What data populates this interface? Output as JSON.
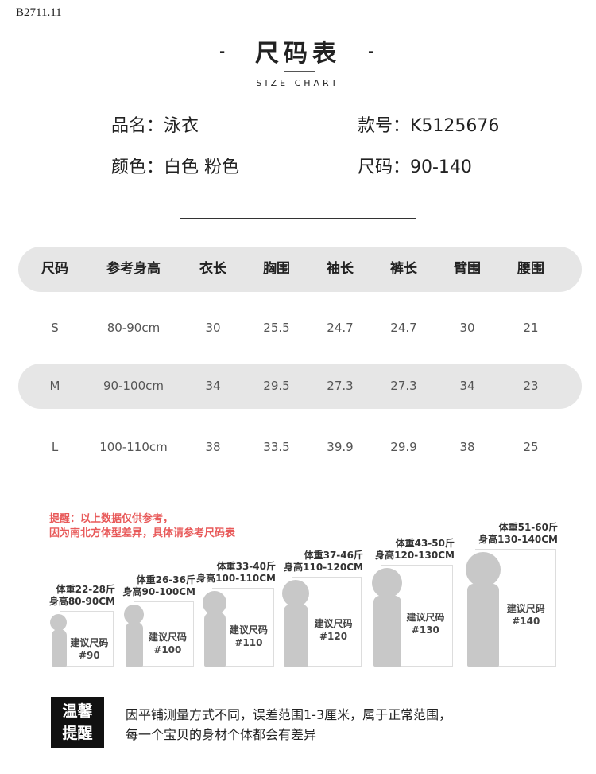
{
  "code": "B2711.11",
  "title": "尺码表",
  "subtitle": "SIZE CHART",
  "info": {
    "name": "品名：泳衣",
    "item_no": "款号：K5125676",
    "color": "颜色：白色 粉色",
    "size": "尺码：90-140"
  },
  "table": {
    "headers": [
      "尺码",
      "参考身高",
      "衣长",
      "胸围",
      "袖长",
      "裤长",
      "臂围",
      "腰围"
    ],
    "rows": [
      [
        "S",
        "80-90cm",
        "30",
        "25.5",
        "24.7",
        "24.7",
        "30",
        "21"
      ],
      [
        "M",
        "90-100cm",
        "34",
        "29.5",
        "27.3",
        "27.3",
        "34",
        "23"
      ],
      [
        "L",
        "100-110cm",
        "38",
        "33.5",
        "39.9",
        "29.9",
        "38",
        "25"
      ]
    ]
  },
  "warning": [
    "提醒：以上数据仅供参考，",
    "因为南北方体型差异，具体请参考尺码表"
  ],
  "warning_color": "#e85a5a",
  "figures": [
    {
      "weight": "体重22-28斤",
      "height": "身高80-90CM",
      "suggest": "建议尺码",
      "size": "#90"
    },
    {
      "weight": "体重26-36斤",
      "height": "身高90-100CM",
      "suggest": "建议尺码",
      "size": "#100"
    },
    {
      "weight": "体重33-40斤",
      "height": "身高100-110CM",
      "suggest": "建议尺码",
      "size": "#110"
    },
    {
      "weight": "体重37-46斤",
      "height": "身高110-120CM",
      "suggest": "建议尺码",
      "size": "#120"
    },
    {
      "weight": "体重43-50斤",
      "height": "身高120-130CM",
      "suggest": "建议尺码",
      "size": "#130"
    },
    {
      "weight": "体重51-60斤",
      "height": "身高130-140CM",
      "suggest": "建议尺码",
      "size": "#140"
    }
  ],
  "tip": {
    "badge_1": "温馨",
    "badge_2": "提醒",
    "line_1": "因平铺测量方式不同，误差范围1-3厘米，属于正常范围，",
    "line_2": "每一个宝贝的身材个体都会有差异"
  }
}
